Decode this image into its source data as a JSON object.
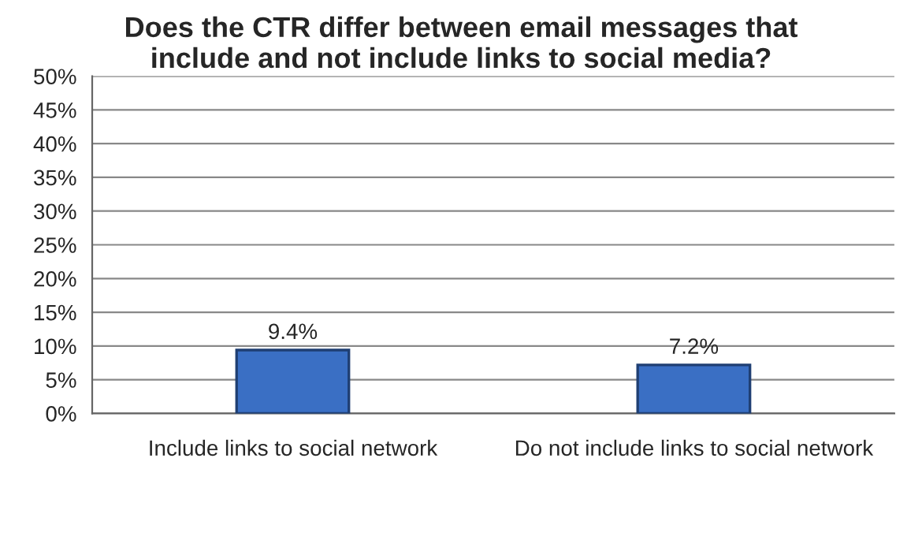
{
  "chart_data": {
    "type": "bar",
    "title": "Does the CTR differ between email messages that\ninclude and not include links to social media?",
    "categories": [
      "Include links to social network",
      "Do not include links to social network"
    ],
    "values": [
      9.4,
      7.2
    ],
    "color": "#3a6fc4",
    "value_labels": [
      "9.4%",
      "7.2%"
    ],
    "ylim": [
      0,
      50
    ],
    "yticks": [
      {
        "value": 0,
        "label": "0%"
      },
      {
        "value": 5,
        "label": "5%"
      },
      {
        "value": 10,
        "label": "10%"
      },
      {
        "value": 15,
        "label": "15%"
      },
      {
        "value": 20,
        "label": "20%"
      },
      {
        "value": 25,
        "label": "25%"
      },
      {
        "value": 30,
        "label": "30%"
      },
      {
        "value": 35,
        "label": "35%"
      },
      {
        "value": 40,
        "label": "40%"
      },
      {
        "value": 45,
        "label": "45%"
      },
      {
        "value": 50,
        "label": "50%"
      }
    ],
    "grid": "y",
    "legend": false
  }
}
